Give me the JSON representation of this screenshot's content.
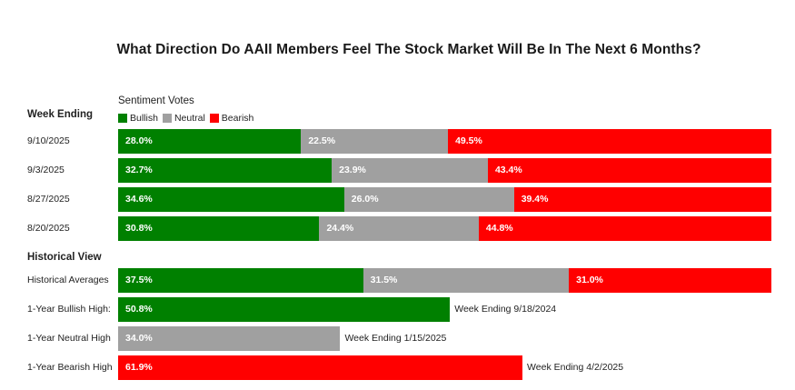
{
  "chart_data": {
    "type": "bar",
    "stacked": true,
    "orientation": "horizontal",
    "title": "What Direction Do AAII Members Feel The Stock Market Will Be In The Next 6 Months?",
    "legend_title": "Sentiment Votes",
    "row_header": "Week Ending",
    "historical_header": "Historical View",
    "legend_placement": "top-left",
    "grid": false,
    "colors": {
      "bullish": "#008000",
      "neutral": "#a0a0a0",
      "bearish": "#ff0000"
    },
    "legend": [
      "Bullish",
      "Neutral",
      "Bearish"
    ],
    "weekly": [
      {
        "label": "9/10/2025",
        "values": [
          28.0,
          22.5,
          49.5
        ],
        "value_labels": [
          "28.0%",
          "22.5%",
          "49.5%"
        ]
      },
      {
        "label": "9/3/2025",
        "values": [
          32.7,
          23.9,
          43.4
        ],
        "value_labels": [
          "32.7%",
          "23.9%",
          "43.4%"
        ]
      },
      {
        "label": "8/27/2025",
        "values": [
          34.6,
          26.0,
          39.4
        ],
        "value_labels": [
          "34.6%",
          "26.0%",
          "39.4%"
        ]
      },
      {
        "label": "8/20/2025",
        "values": [
          30.8,
          24.4,
          44.8
        ],
        "value_labels": [
          "30.8%",
          "24.4%",
          "44.8%"
        ]
      }
    ],
    "historical": [
      {
        "label": "Historical Averages",
        "values": [
          37.5,
          31.5,
          31.0
        ],
        "value_labels": [
          "37.5%",
          "31.5%",
          "31.0%"
        ]
      },
      {
        "label": "1-Year Bullish High:",
        "values": [
          50.8,
          0,
          0
        ],
        "value_labels": [
          "50.8%",
          "",
          ""
        ],
        "annotation": "Week Ending 9/18/2024"
      },
      {
        "label": "1-Year Neutral High",
        "values": [
          0,
          34.0,
          0
        ],
        "value_labels": [
          "",
          "34.0%",
          ""
        ],
        "annotation": "Week Ending 1/15/2025"
      },
      {
        "label": "1-Year Bearish High",
        "values": [
          0,
          0,
          61.9
        ],
        "value_labels": [
          "",
          "",
          "61.9%"
        ],
        "annotation": "Week Ending 4/2/2025"
      }
    ],
    "xlim": [
      0,
      100
    ]
  }
}
